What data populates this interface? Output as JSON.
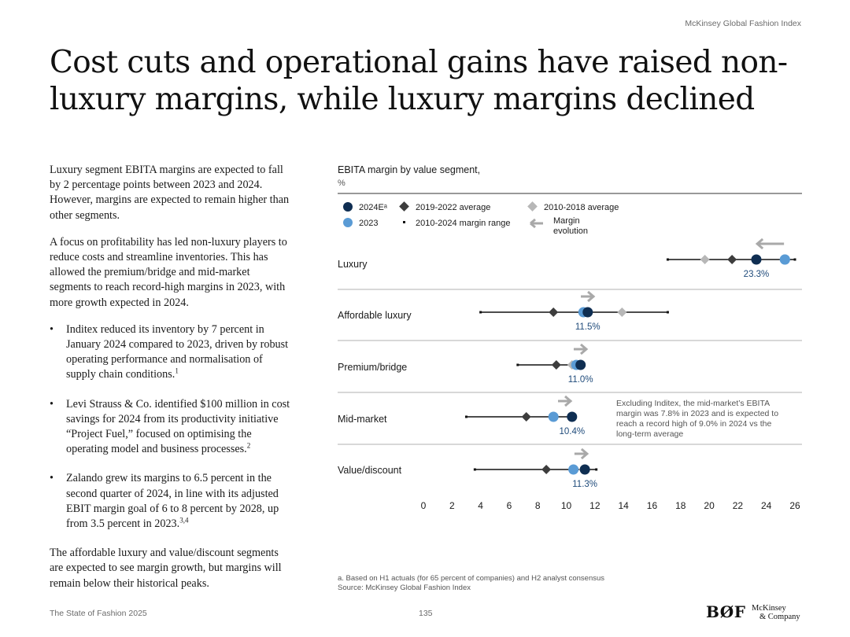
{
  "header": {
    "brand": "McKinsey Global Fashion Index"
  },
  "title": "Cost cuts and operational gains have raised non-luxury margins, while luxury margins declined",
  "body": {
    "p1": "Luxury segment EBITA margins are expected to fall by 2 percentage points between 2023 and 2024. However, margins are expected to remain higher than other segments.",
    "p2": "A focus on profitability has led non-luxury players to reduce costs and streamline inventories. This has allowed the premium/bridge and mid-market segments to reach record-high margins in 2023, with more growth expected in 2024.",
    "bullets": [
      {
        "text": "Inditex reduced its inventory by 7 percent in January 2024 compared to 2023, driven by robust operating performance and normalisation of supply chain conditions.",
        "sup": "1"
      },
      {
        "text": "Levi Strauss & Co. identified $100 million in cost savings for 2024 from its productivity initiative “Project Fuel,” focused on optimising the operating model and business processes.",
        "sup": "2"
      },
      {
        "text": "Zalando grew its margins to 6.5 percent in the second quarter of 2024, in line with its adjusted EBIT margin goal of 6 to 8 percent by 2028, up from 3.5 percent in 2023.",
        "sup": "3,4"
      }
    ],
    "p3": "The affordable luxury and value/discount segments are expected to see margin growth, but margins will remain below their historical peaks.",
    "bullet_char": "•"
  },
  "chart_data": {
    "type": "scatter",
    "title": "EBITA margin by value segment,",
    "unit": "%",
    "legend": {
      "e2024": "2024Eᵃ",
      "avg1922": "2019-2022 average",
      "avg1018": "2010-2018 average",
      "y2023": "2023",
      "range": "2010-2024 margin range",
      "evolution_l1": "Margin",
      "evolution_l2": "evolution"
    },
    "x_ticks": [
      0,
      2,
      4,
      6,
      8,
      10,
      12,
      14,
      16,
      18,
      20,
      22,
      24,
      26
    ],
    "xlim": [
      0,
      26
    ],
    "segments": [
      {
        "name": "Luxury",
        "range": [
          17.1,
          26
        ],
        "avg_2010_2018": 19.7,
        "avg_2019_2022": 21.6,
        "y2023": 25.3,
        "e2024": 23.3,
        "label": "23.3%",
        "direction": "left"
      },
      {
        "name": "Affordable luxury",
        "range": [
          4.0,
          17.1
        ],
        "avg_2010_2018": 13.9,
        "avg_2019_2022": 9.1,
        "y2023": 11.2,
        "e2024": 11.5,
        "label": "11.5%",
        "direction": "right"
      },
      {
        "name": "Premium/bridge",
        "range": [
          6.6,
          11.0
        ],
        "avg_2010_2018": 10.4,
        "avg_2019_2022": 9.3,
        "y2023": 10.7,
        "e2024": 11.0,
        "label": "11.0%",
        "direction": "right"
      },
      {
        "name": "Mid-market",
        "range": [
          3.0,
          10.4
        ],
        "avg_2010_2018": 9.1,
        "avg_2019_2022": 7.2,
        "y2023": 9.1,
        "e2024": 10.4,
        "label": "10.4%",
        "direction": "right"
      },
      {
        "name": "Value/discount",
        "range": [
          3.6,
          12.1
        ],
        "avg_2010_2018": 11.2,
        "avg_2019_2022": 8.6,
        "y2023": 10.5,
        "e2024": 11.3,
        "label": "11.3%",
        "direction": "right"
      }
    ],
    "annotation": {
      "lines": [
        "Excluding Inditex, the mid-market’s EBITA",
        "margin was 7.8% in 2023 and is expected to",
        "reach a record high of 9.0% in 2024 vs the",
        "long-term average"
      ]
    },
    "colors": {
      "e2024": "#0f2e52",
      "y2023": "#5a9bd5",
      "avg1922": "#3d3d3d",
      "avg1018": "#b7b7b7",
      "arrow": "#a9a9a9",
      "range": "#111111",
      "label": "#1e4a7a"
    }
  },
  "footnote": {
    "line1": "a. Based on H1 actuals (for 65 percent of companies) and H2 analyst consensus",
    "line2": "Source: McKinsey Global Fashion Index"
  },
  "footer": {
    "left": "The State of Fashion 2025",
    "page": "135",
    "bof": "BØF",
    "mck1": "McKinsey",
    "mck2": "& Company"
  }
}
